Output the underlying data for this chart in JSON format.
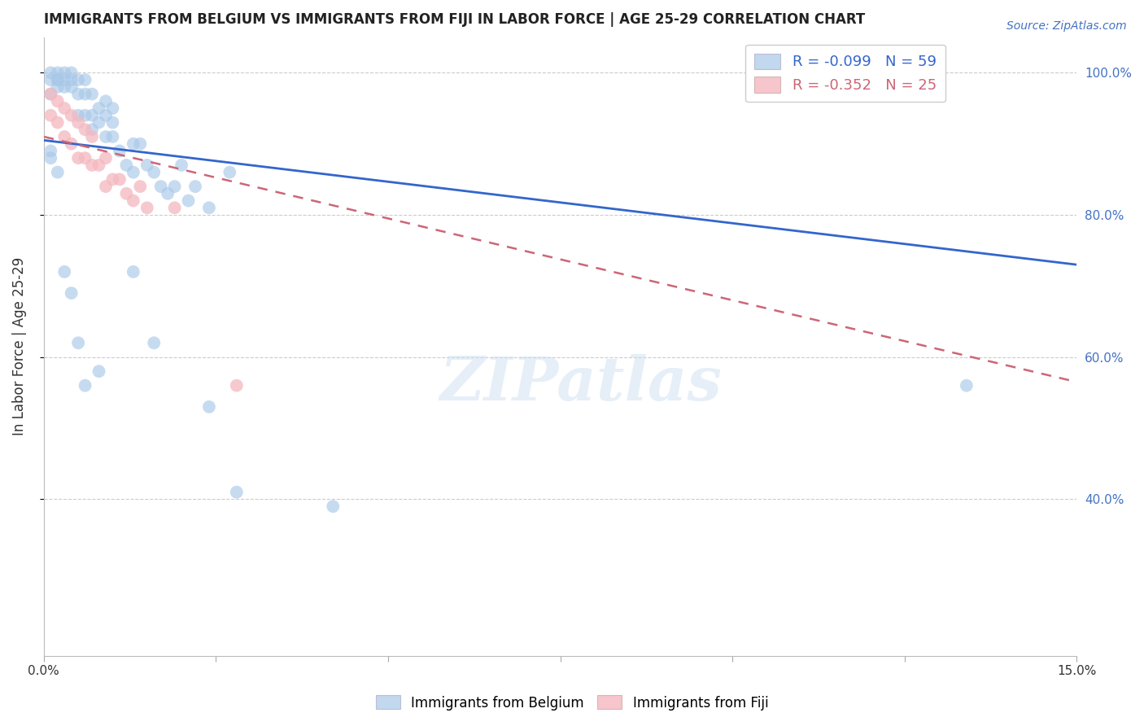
{
  "title": "IMMIGRANTS FROM BELGIUM VS IMMIGRANTS FROM FIJI IN LABOR FORCE | AGE 25-29 CORRELATION CHART",
  "source": "Source: ZipAtlas.com",
  "ylabel": "In Labor Force | Age 25-29",
  "xlim": [
    0.0,
    0.15
  ],
  "ylim": [
    0.18,
    1.05
  ],
  "yticks": [
    1.0,
    0.8,
    0.6,
    0.4
  ],
  "yticklabels": [
    "100.0%",
    "80.0%",
    "60.0%",
    "40.0%"
  ],
  "xtick_positions": [
    0.0,
    0.025,
    0.05,
    0.075,
    0.1,
    0.125,
    0.15
  ],
  "legend_label_blue": "Immigrants from Belgium",
  "legend_label_pink": "Immigrants from Fiji",
  "R_blue": -0.099,
  "N_blue": 59,
  "R_pink": -0.352,
  "N_pink": 25,
  "blue_scatter_color": "#a8c8e8",
  "pink_scatter_color": "#f4b8c0",
  "trendline_blue_color": "#3366cc",
  "trendline_pink_color": "#cc6677",
  "watermark": "ZIPatlas",
  "blue_trendline_y0": 0.905,
  "blue_trendline_y1": 0.73,
  "pink_trendline_y0": 0.91,
  "pink_trendline_y1": 0.565,
  "blue_scatter_x": [
    0.001,
    0.001,
    0.001,
    0.002,
    0.002,
    0.002,
    0.002,
    0.003,
    0.003,
    0.003,
    0.004,
    0.004,
    0.004,
    0.005,
    0.005,
    0.005,
    0.006,
    0.006,
    0.006,
    0.007,
    0.007,
    0.007,
    0.008,
    0.008,
    0.009,
    0.009,
    0.009,
    0.01,
    0.01,
    0.01,
    0.011,
    0.012,
    0.013,
    0.013,
    0.014,
    0.015,
    0.016,
    0.017,
    0.018,
    0.019,
    0.02,
    0.021,
    0.022,
    0.024,
    0.027,
    0.001,
    0.001,
    0.002,
    0.003,
    0.004,
    0.005,
    0.006,
    0.008,
    0.013,
    0.016,
    0.024,
    0.028,
    0.042,
    0.134
  ],
  "blue_scatter_y": [
    1.0,
    0.99,
    0.97,
    1.0,
    0.99,
    0.99,
    0.98,
    1.0,
    0.99,
    0.98,
    1.0,
    0.99,
    0.98,
    0.99,
    0.97,
    0.94,
    0.99,
    0.97,
    0.94,
    0.97,
    0.94,
    0.92,
    0.95,
    0.93,
    0.96,
    0.94,
    0.91,
    0.95,
    0.93,
    0.91,
    0.89,
    0.87,
    0.9,
    0.86,
    0.9,
    0.87,
    0.86,
    0.84,
    0.83,
    0.84,
    0.87,
    0.82,
    0.84,
    0.81,
    0.86,
    0.89,
    0.88,
    0.86,
    0.72,
    0.69,
    0.62,
    0.56,
    0.58,
    0.72,
    0.62,
    0.53,
    0.41,
    0.39,
    0.56
  ],
  "pink_scatter_x": [
    0.001,
    0.001,
    0.002,
    0.002,
    0.003,
    0.003,
    0.004,
    0.004,
    0.005,
    0.005,
    0.006,
    0.006,
    0.007,
    0.007,
    0.008,
    0.009,
    0.009,
    0.01,
    0.011,
    0.012,
    0.013,
    0.014,
    0.015,
    0.019,
    0.028
  ],
  "pink_scatter_y": [
    0.97,
    0.94,
    0.96,
    0.93,
    0.95,
    0.91,
    0.94,
    0.9,
    0.93,
    0.88,
    0.92,
    0.88,
    0.91,
    0.87,
    0.87,
    0.88,
    0.84,
    0.85,
    0.85,
    0.83,
    0.82,
    0.84,
    0.81,
    0.81,
    0.56
  ]
}
